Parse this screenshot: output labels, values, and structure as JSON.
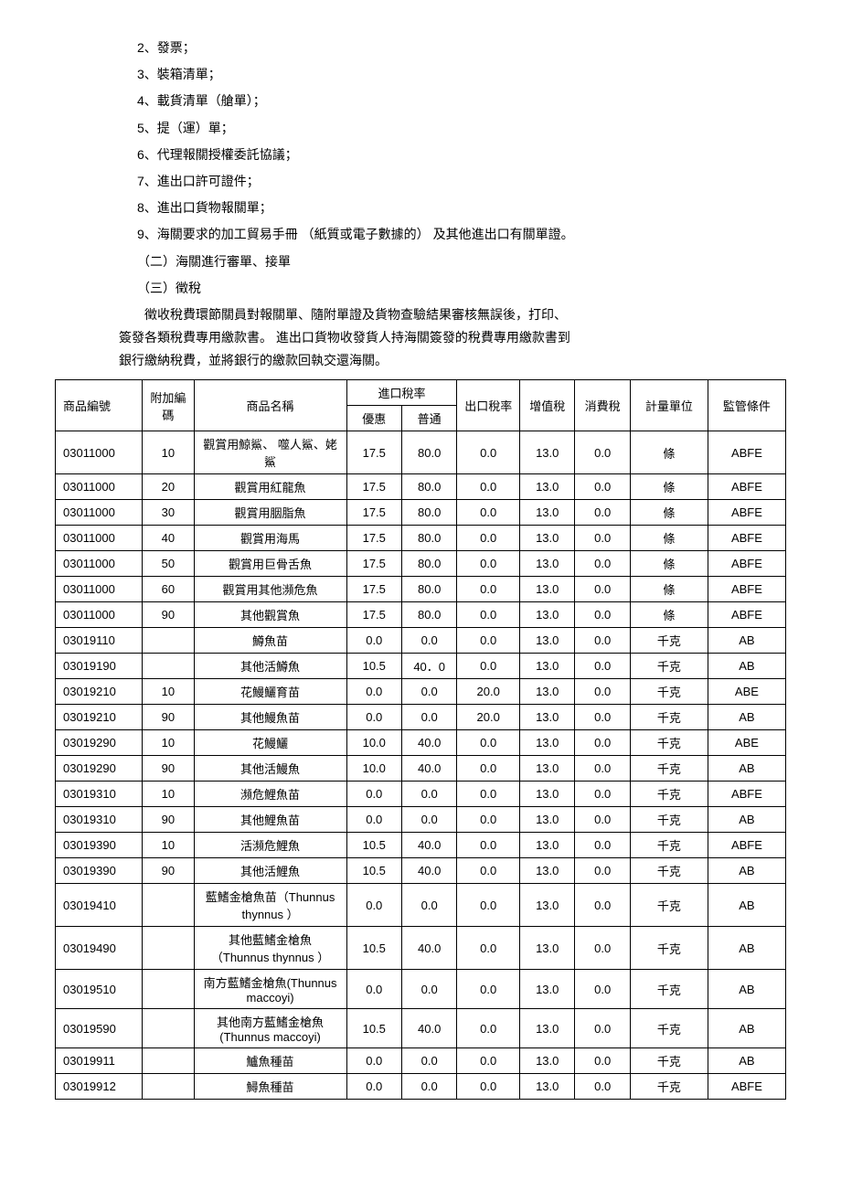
{
  "paragraphs": {
    "items": [
      "2、發票；",
      "3、裝箱清單；",
      "4、載貨清單（艙單）；",
      "5、提（運）單；",
      "6、代理報關授權委託協議；",
      "7、進出口許可證件；",
      "8、進出口貨物報關單；",
      "9、海關要求的加工貿易手冊 （紙質或電子數據的） 及其他進出口有關單證。",
      "（二）海關進行審單、接單",
      "（三）徵稅"
    ],
    "body1": "徵收稅費環節關員對報關單、隨附單證及貨物查驗結果審核無誤後，打印、",
    "body2": "簽發各類稅費專用繳款書。 進出口貨物收發貨人持海關簽發的稅費專用繳款書到",
    "body3": "銀行繳納稅費，並將銀行的繳款回執交還海關。"
  },
  "table": {
    "headers": {
      "code": "商品編號",
      "addcode": "附加編碼",
      "name": "商品名稱",
      "import_rate": "進口稅率",
      "pref": "優惠",
      "normal": "普通",
      "export": "出口稅率",
      "vat": "增值稅",
      "cons": "消費稅",
      "unit": "計量單位",
      "cond": "監管條件"
    },
    "rows": [
      {
        "code": "03011000",
        "add": "10",
        "name": "觀賞用鯨鯊、 噬人鯊、姥鯊",
        "pref": "17.5",
        "norm": "80.0",
        "exp": "0.0",
        "vat": "13.0",
        "cons": "0.0",
        "unit": "條",
        "cond": "ABFE"
      },
      {
        "code": "03011000",
        "add": "20",
        "name": "觀賞用紅龍魚",
        "pref": "17.5",
        "norm": "80.0",
        "exp": "0.0",
        "vat": "13.0",
        "cons": "0.0",
        "unit": "條",
        "cond": "ABFE"
      },
      {
        "code": "03011000",
        "add": "30",
        "name": "觀賞用胭脂魚",
        "pref": "17.5",
        "norm": "80.0",
        "exp": "0.0",
        "vat": "13.0",
        "cons": "0.0",
        "unit": "條",
        "cond": "ABFE"
      },
      {
        "code": "03011000",
        "add": "40",
        "name": "觀賞用海馬",
        "pref": "17.5",
        "norm": "80.0",
        "exp": "0.0",
        "vat": "13.0",
        "cons": "0.0",
        "unit": "條",
        "cond": "ABFE"
      },
      {
        "code": "03011000",
        "add": "50",
        "name": "觀賞用巨骨舌魚",
        "pref": "17.5",
        "norm": "80.0",
        "exp": "0.0",
        "vat": "13.0",
        "cons": "0.0",
        "unit": "條",
        "cond": "ABFE"
      },
      {
        "code": "03011000",
        "add": "60",
        "name": "觀賞用其他瀕危魚",
        "pref": "17.5",
        "norm": "80.0",
        "exp": "0.0",
        "vat": "13.0",
        "cons": "0.0",
        "unit": "條",
        "cond": "ABFE"
      },
      {
        "code": "03011000",
        "add": "90",
        "name": "其他觀賞魚",
        "pref": "17.5",
        "norm": "80.0",
        "exp": "0.0",
        "vat": "13.0",
        "cons": "0.0",
        "unit": "條",
        "cond": "ABFE"
      },
      {
        "code": "03019110",
        "add": "",
        "name": "鱒魚苗",
        "pref": "0.0",
        "norm": "0.0",
        "exp": "0.0",
        "vat": "13.0",
        "cons": "0.0",
        "unit": "千克",
        "cond": "AB"
      },
      {
        "code": "03019190",
        "add": "",
        "name": "其他活鱒魚",
        "pref": "10.5",
        "norm": "40．0",
        "exp": "0.0",
        "vat": "13.0",
        "cons": "0.0",
        "unit": "千克",
        "cond": "AB"
      },
      {
        "code": "03019210",
        "add": "10",
        "name": "花鰻鱺育苗",
        "pref": "0.0",
        "norm": "0.0",
        "exp": "20.0",
        "vat": "13.0",
        "cons": "0.0",
        "unit": "千克",
        "cond": "ABE"
      },
      {
        "code": "03019210",
        "add": "90",
        "name": "其他鰻魚苗",
        "pref": "0.0",
        "norm": "0.0",
        "exp": "20.0",
        "vat": "13.0",
        "cons": "0.0",
        "unit": "千克",
        "cond": "AB"
      },
      {
        "code": "03019290",
        "add": "10",
        "name": "花鰻鱺",
        "pref": "10.0",
        "norm": "40.0",
        "exp": "0.0",
        "vat": "13.0",
        "cons": "0.0",
        "unit": "千克",
        "cond": "ABE"
      },
      {
        "code": "03019290",
        "add": "90",
        "name": "其他活鰻魚",
        "pref": "10.0",
        "norm": "40.0",
        "exp": "0.0",
        "vat": "13.0",
        "cons": "0.0",
        "unit": "千克",
        "cond": "AB"
      },
      {
        "code": "03019310",
        "add": "10",
        "name": "瀕危鯉魚苗",
        "pref": "0.0",
        "norm": "0.0",
        "exp": "0.0",
        "vat": "13.0",
        "cons": "0.0",
        "unit": "千克",
        "cond": "ABFE"
      },
      {
        "code": "03019310",
        "add": "90",
        "name": "其他鯉魚苗",
        "pref": "0.0",
        "norm": "0.0",
        "exp": "0.0",
        "vat": "13.0",
        "cons": "0.0",
        "unit": "千克",
        "cond": "AB"
      },
      {
        "code": "03019390",
        "add": "10",
        "name": "活瀕危鯉魚",
        "pref": "10.5",
        "norm": "40.0",
        "exp": "0.0",
        "vat": "13.0",
        "cons": "0.0",
        "unit": "千克",
        "cond": "ABFE"
      },
      {
        "code": "03019390",
        "add": "90",
        "name": "其他活鯉魚",
        "pref": "10.5",
        "norm": "40.0",
        "exp": "0.0",
        "vat": "13.0",
        "cons": "0.0",
        "unit": "千克",
        "cond": "AB"
      },
      {
        "code": "03019410",
        "add": "",
        "name": "藍鰭金槍魚苗（Thunnus thynnus ）",
        "pref": "0.0",
        "norm": "0.0",
        "exp": "0.0",
        "vat": "13.0",
        "cons": "0.0",
        "unit": "千克",
        "cond": "AB"
      },
      {
        "code": "03019490",
        "add": "",
        "name": "其他藍鰭金槍魚（Thunnus thynnus ）",
        "pref": "10.5",
        "norm": "40.0",
        "exp": "0.0",
        "vat": "13.0",
        "cons": "0.0",
        "unit": "千克",
        "cond": "AB"
      },
      {
        "code": "03019510",
        "add": "",
        "name": "南方藍鰭金槍魚(Thunnus maccoyi)",
        "pref": "0.0",
        "norm": "0.0",
        "exp": "0.0",
        "vat": "13.0",
        "cons": "0.0",
        "unit": "千克",
        "cond": "AB"
      },
      {
        "code": "03019590",
        "add": "",
        "name": "其他南方藍鰭金槍魚(Thunnus maccoyi)",
        "pref": "10.5",
        "norm": "40.0",
        "exp": "0.0",
        "vat": "13.0",
        "cons": "0.0",
        "unit": "千克",
        "cond": "AB"
      },
      {
        "code": "03019911",
        "add": "",
        "name": "鱸魚種苗",
        "pref": "0.0",
        "norm": "0.0",
        "exp": "0.0",
        "vat": "13.0",
        "cons": "0.0",
        "unit": "千克",
        "cond": "AB"
      },
      {
        "code": "03019912",
        "add": "",
        "name": "鱘魚種苗",
        "pref": "0.0",
        "norm": "0.0",
        "exp": "0.0",
        "vat": "13.0",
        "cons": "0.0",
        "unit": "千克",
        "cond": "ABFE"
      }
    ]
  }
}
